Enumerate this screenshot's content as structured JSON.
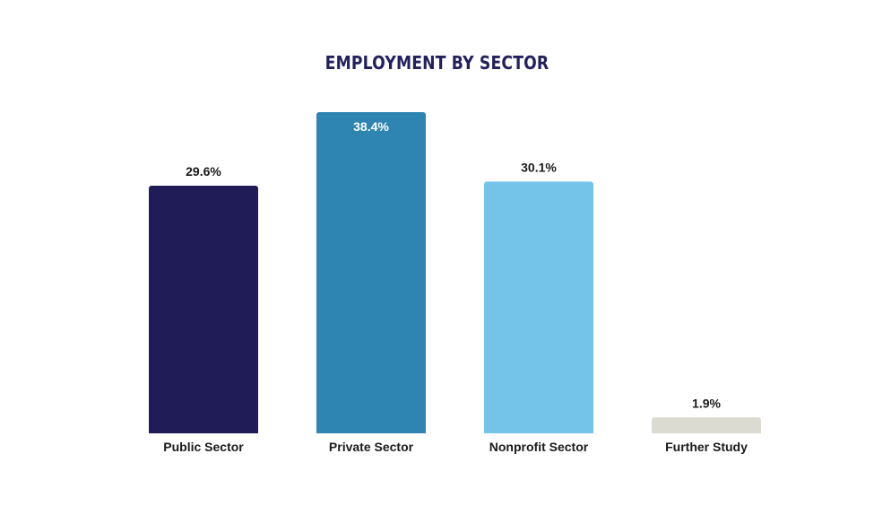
{
  "chart_data": {
    "type": "bar",
    "title": "EMPLOYMENT BY SECTOR",
    "categories": [
      "Public Sector",
      "Private Sector",
      "Nonprofit Sector",
      "Further Study"
    ],
    "values": [
      29.6,
      38.4,
      30.1,
      1.9
    ],
    "value_labels": [
      "29.6%",
      "38.4%",
      "30.1%",
      "1.9%"
    ],
    "colors": [
      "#201c57",
      "#2e85b2",
      "#74c4ea",
      "#dbdbd1"
    ],
    "label_colors": [
      "#1a1a1a",
      "#ffffff",
      "#1a1a1a",
      "#1a1a1a"
    ],
    "label_inside": [
      false,
      true,
      false,
      false
    ],
    "ylim": [
      0,
      38.4
    ],
    "grid": false,
    "legend": "none",
    "xlabel": "",
    "ylabel": ""
  }
}
